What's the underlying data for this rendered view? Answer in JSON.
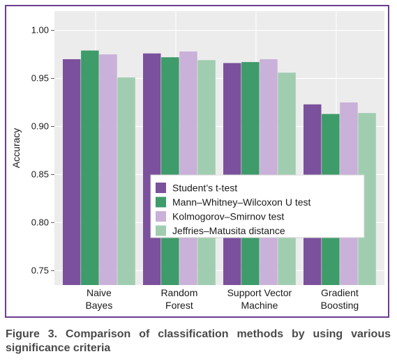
{
  "chart_data": {
    "type": "bar",
    "categories": [
      [
        "Naive",
        "Bayes"
      ],
      [
        "Random",
        "Forest"
      ],
      [
        "Support Vector",
        "Machine"
      ],
      [
        "Gradient",
        "Boosting"
      ]
    ],
    "ylabel": "Accuracy",
    "ylim": [
      0.735,
      1.02
    ],
    "yticks": [
      "0.75",
      "0.80",
      "0.85",
      "0.90",
      "0.95",
      "1.00"
    ],
    "grid": true,
    "legend_position": "center-right",
    "series": [
      {
        "name": "Student’s t-test",
        "color": "#7b519d",
        "values": [
          0.97,
          0.976,
          0.966,
          0.923
        ]
      },
      {
        "name": "Mann–Whitney–Wilcoxon U test",
        "color": "#3e9b6a",
        "values": [
          0.979,
          0.972,
          0.967,
          0.913
        ]
      },
      {
        "name": "Kolmogorov–Smirnov test",
        "color": "#c9b1d9",
        "values": [
          0.975,
          0.978,
          0.97,
          0.925
        ]
      },
      {
        "name": "Jeffries–Matusita distance",
        "color": "#a0cdb0",
        "values": [
          0.951,
          0.969,
          0.956,
          0.914
        ]
      }
    ]
  },
  "caption": "Figure 3. Comparison of classification methods by using various significance criteria"
}
